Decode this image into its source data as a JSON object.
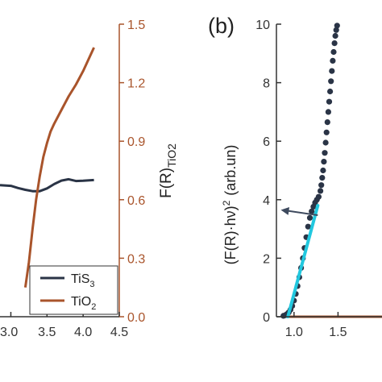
{
  "colors": {
    "tis3": "#2a3446",
    "tio2": "#a9542b",
    "fit": "#22c8df",
    "arrow": "#3e4a5e",
    "axis_right": "#a9542b"
  },
  "panel_b_label": "(b)",
  "chart_data": [
    {
      "type": "line",
      "panel": "a",
      "x_ticks": [
        "3.0",
        "3.5",
        "4.0",
        "4.5"
      ],
      "x_tick_values": [
        3.0,
        3.5,
        4.0,
        4.5
      ],
      "xlim": [
        2.85,
        4.5
      ],
      "y2lim": [
        0.0,
        1.5
      ],
      "y2_ticks": [
        "0.0",
        "0.3",
        "0.6",
        "0.9",
        "1.2",
        "1.5"
      ],
      "y2_tick_values": [
        0.0,
        0.3,
        0.6,
        0.9,
        1.2,
        1.5
      ],
      "y2label_main": "F(R)",
      "y2label_sub": "TiO2",
      "legend": [
        {
          "label_main": "TiS",
          "label_sub": "3",
          "color_key": "tis3"
        },
        {
          "label_main": "TiO",
          "label_sub": "2",
          "color_key": "tio2"
        }
      ],
      "series": [
        {
          "name": "TiS3",
          "color_key": "tis3",
          "axis": "right",
          "x": [
            2.85,
            3.0,
            3.1,
            3.2,
            3.3,
            3.4,
            3.5,
            3.6,
            3.7,
            3.8,
            3.9,
            4.0,
            4.15
          ],
          "y": [
            0.675,
            0.671,
            0.66,
            0.651,
            0.644,
            0.644,
            0.658,
            0.68,
            0.698,
            0.705,
            0.696,
            0.697,
            0.701
          ]
        },
        {
          "name": "TiO2",
          "color_key": "tio2",
          "axis": "right",
          "x": [
            3.2,
            3.25,
            3.3,
            3.35,
            3.4,
            3.45,
            3.5,
            3.55,
            3.6,
            3.7,
            3.8,
            3.9,
            4.0,
            4.1,
            4.15
          ],
          "y": [
            0.15,
            0.28,
            0.45,
            0.6,
            0.72,
            0.82,
            0.89,
            0.95,
            0.99,
            1.06,
            1.13,
            1.19,
            1.26,
            1.34,
            1.38
          ]
        }
      ]
    },
    {
      "type": "scatter",
      "panel": "b",
      "x_ticks": [
        "1.0",
        "1.5"
      ],
      "x_tick_values": [
        1.0,
        1.5
      ],
      "xlim": [
        0.8,
        2.0
      ],
      "ylim": [
        0,
        10
      ],
      "y_ticks": [
        "0",
        "2",
        "4",
        "6",
        "8",
        "10"
      ],
      "y_tick_values": [
        0,
        2,
        4,
        6,
        8,
        10
      ],
      "ylabel_text": "(F(R)·hν)",
      "ylabel_exp": "2",
      "ylabel_unit": "(arb.un)",
      "series": [
        {
          "name": "TiS3",
          "color_key": "tis3",
          "x": [
            0.88,
            0.9,
            0.92,
            0.94,
            0.96,
            0.98,
            1.0,
            1.02,
            1.04,
            1.06,
            1.08,
            1.1,
            1.12,
            1.14,
            1.16,
            1.18,
            1.2,
            1.22,
            1.24,
            1.26,
            1.28,
            1.3,
            1.31,
            1.32,
            1.33,
            1.34,
            1.35,
            1.36,
            1.37,
            1.38,
            1.39,
            1.4,
            1.41,
            1.42,
            1.43,
            1.44,
            1.45,
            1.46,
            1.47,
            1.48,
            1.49
          ],
          "y": [
            0.03,
            0.05,
            0.09,
            0.15,
            0.24,
            0.37,
            0.55,
            0.78,
            1.05,
            1.35,
            1.67,
            2.0,
            2.35,
            2.72,
            3.08,
            3.38,
            3.6,
            3.76,
            3.9,
            4.0,
            4.1,
            4.3,
            4.5,
            4.75,
            5.0,
            5.3,
            5.6,
            5.95,
            6.3,
            6.65,
            7.0,
            7.35,
            7.7,
            8.05,
            8.4,
            8.75,
            9.05,
            9.35,
            9.6,
            9.8,
            9.95
          ]
        },
        {
          "name": "TiO2",
          "color_key": "tio2",
          "x": [
            0.86,
            2.0
          ],
          "y": [
            0.0,
            0.0
          ]
        }
      ],
      "fit_line": {
        "x": [
          0.93,
          1.27
        ],
        "y": [
          0.0,
          3.8
        ]
      },
      "annotation_arrow": {
        "from": [
          1.27,
          3.47
        ],
        "to": [
          0.85,
          3.65
        ]
      }
    }
  ]
}
